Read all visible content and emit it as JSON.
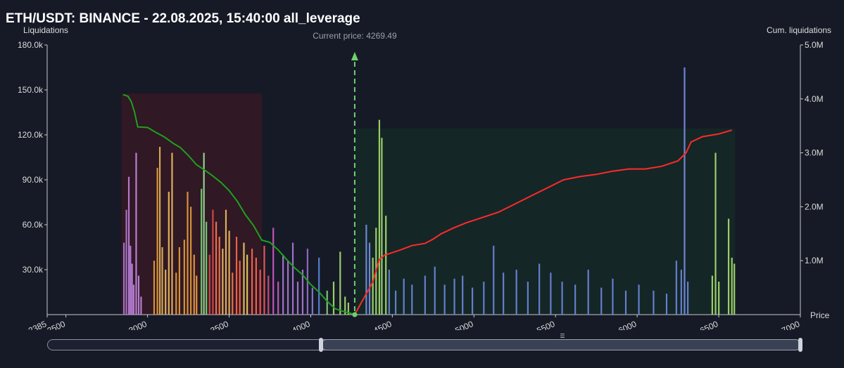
{
  "header": {
    "title": "ETH/USDT: BINANCE - 22.08.2025, 15:40:00 all_leverage",
    "left_axis_title": "Liquidations",
    "right_axis_title": "Cum. liquidations",
    "x_axis_title": "Price"
  },
  "colors": {
    "background": "#161a26",
    "green_curve": "#1fa01f",
    "red_curve": "#ff2a2a",
    "current_price_line": "#6fcf6f"
  },
  "chart_data": {
    "type": "bar",
    "xlabel": "Price",
    "ylabel": "Liquidations",
    "y2label": "Cum. liquidations",
    "xlim": [
      2385,
      7000
    ],
    "ylim": [
      0,
      180000
    ],
    "y2lim": [
      0,
      5000000
    ],
    "x_ticks": [
      {
        "value": 2385,
        "label": "2385"
      },
      {
        "value": 2500,
        "label": "2500"
      },
      {
        "value": 3000,
        "label": "3000"
      },
      {
        "value": 3500,
        "label": "3500"
      },
      {
        "value": 4000,
        "label": "4000"
      },
      {
        "value": 4500,
        "label": "4500"
      },
      {
        "value": 5000,
        "label": "5000"
      },
      {
        "value": 5500,
        "label": "5500"
      },
      {
        "value": 6000,
        "label": "6000"
      },
      {
        "value": 6500,
        "label": "6500"
      },
      {
        "value": 7000,
        "label": "7000"
      }
    ],
    "y_ticks": [
      {
        "value": 30000,
        "label": "30.0k"
      },
      {
        "value": 60000,
        "label": "60.0k"
      },
      {
        "value": 90000,
        "label": "90.0k"
      },
      {
        "value": 120000,
        "label": "120.0k"
      },
      {
        "value": 150000,
        "label": "150.0k"
      },
      {
        "value": 180000,
        "label": "180.0k"
      }
    ],
    "y2_ticks": [
      {
        "value": 1000000,
        "label": "1.0M"
      },
      {
        "value": 2000000,
        "label": "2.0M"
      },
      {
        "value": 3000000,
        "label": "3.0M"
      },
      {
        "value": 4000000,
        "label": "4.0M"
      },
      {
        "value": 5000000,
        "label": "5.0M"
      }
    ],
    "current_price": {
      "value": 4269.49,
      "label": "Current price: 4269.49"
    },
    "bars": [
      {
        "x": 2855,
        "y": 48000,
        "color": "#b07ad8"
      },
      {
        "x": 2870,
        "y": 70000,
        "color": "#b07ad8"
      },
      {
        "x": 2885,
        "y": 92000,
        "color": "#c084e0"
      },
      {
        "x": 2895,
        "y": 46000,
        "color": "#c084e0"
      },
      {
        "x": 2905,
        "y": 34000,
        "color": "#c084e0"
      },
      {
        "x": 2915,
        "y": 20000,
        "color": "#c084e0"
      },
      {
        "x": 2930,
        "y": 108000,
        "color": "#c98ae6"
      },
      {
        "x": 2945,
        "y": 26000,
        "color": "#c98ae6"
      },
      {
        "x": 2960,
        "y": 12000,
        "color": "#c98ae6"
      },
      {
        "x": 3040,
        "y": 36000,
        "color": "#e8a03c"
      },
      {
        "x": 3060,
        "y": 98000,
        "color": "#e8a03c"
      },
      {
        "x": 3075,
        "y": 112000,
        "color": "#e6b85a"
      },
      {
        "x": 3090,
        "y": 45000,
        "color": "#e6b85a"
      },
      {
        "x": 3110,
        "y": 30000,
        "color": "#f0c060"
      },
      {
        "x": 3130,
        "y": 82000,
        "color": "#f0c060"
      },
      {
        "x": 3150,
        "y": 108000,
        "color": "#f0c060"
      },
      {
        "x": 3175,
        "y": 28000,
        "color": "#e8a03c"
      },
      {
        "x": 3195,
        "y": 45000,
        "color": "#e8a03c"
      },
      {
        "x": 3225,
        "y": 50000,
        "color": "#e8a03c"
      },
      {
        "x": 3245,
        "y": 82000,
        "color": "#e8a03c"
      },
      {
        "x": 3265,
        "y": 72000,
        "color": "#e8a03c"
      },
      {
        "x": 3285,
        "y": 40000,
        "color": "#f0a040"
      },
      {
        "x": 3300,
        "y": 26000,
        "color": "#f0a040"
      },
      {
        "x": 3330,
        "y": 84000,
        "color": "#7ad87a"
      },
      {
        "x": 3345,
        "y": 108000,
        "color": "#9be39b"
      },
      {
        "x": 3360,
        "y": 62000,
        "color": "#7ad87a"
      },
      {
        "x": 3380,
        "y": 40000,
        "color": "#e04a4a"
      },
      {
        "x": 3400,
        "y": 70000,
        "color": "#e04a4a"
      },
      {
        "x": 3420,
        "y": 62000,
        "color": "#ff7a50"
      },
      {
        "x": 3440,
        "y": 52000,
        "color": "#ff7a50"
      },
      {
        "x": 3460,
        "y": 44000,
        "color": "#f0c060"
      },
      {
        "x": 3480,
        "y": 70000,
        "color": "#f0c060"
      },
      {
        "x": 3500,
        "y": 56000,
        "color": "#f0c060"
      },
      {
        "x": 3520,
        "y": 28000,
        "color": "#ff7a50"
      },
      {
        "x": 3545,
        "y": 52000,
        "color": "#ff6a4a"
      },
      {
        "x": 3565,
        "y": 36000,
        "color": "#ff6a4a"
      },
      {
        "x": 3590,
        "y": 48000,
        "color": "#e8d060"
      },
      {
        "x": 3610,
        "y": 40000,
        "color": "#e8d060"
      },
      {
        "x": 3640,
        "y": 44000,
        "color": "#ff6a4a"
      },
      {
        "x": 3665,
        "y": 38000,
        "color": "#ff6a4a"
      },
      {
        "x": 3690,
        "y": 30000,
        "color": "#ff5a5a"
      },
      {
        "x": 3715,
        "y": 46000,
        "color": "#ff5a5a"
      },
      {
        "x": 3740,
        "y": 26000,
        "color": "#e04a8a"
      },
      {
        "x": 3770,
        "y": 58000,
        "color": "#d05ac8"
      },
      {
        "x": 3800,
        "y": 22000,
        "color": "#d05ac8"
      },
      {
        "x": 3830,
        "y": 40000,
        "color": "#b07ad8"
      },
      {
        "x": 3860,
        "y": 36000,
        "color": "#b07ad8"
      },
      {
        "x": 3890,
        "y": 48000,
        "color": "#b07ad8"
      },
      {
        "x": 3920,
        "y": 22000,
        "color": "#b07ad8"
      },
      {
        "x": 3950,
        "y": 30000,
        "color": "#b07ad8"
      },
      {
        "x": 3980,
        "y": 44000,
        "color": "#9a70d0"
      },
      {
        "x": 4010,
        "y": 18000,
        "color": "#8a80d8"
      },
      {
        "x": 4050,
        "y": 38000,
        "color": "#5a8ad8"
      },
      {
        "x": 4100,
        "y": 16000,
        "color": "#8ad080"
      },
      {
        "x": 4140,
        "y": 22000,
        "color": "#a8e070"
      },
      {
        "x": 4180,
        "y": 42000,
        "color": "#a8e070"
      },
      {
        "x": 4210,
        "y": 12000,
        "color": "#a8e070"
      },
      {
        "x": 4230,
        "y": 8000,
        "color": "#a8e070"
      },
      {
        "x": 4340,
        "y": 60000,
        "color": "#7a90e8"
      },
      {
        "x": 4360,
        "y": 48000,
        "color": "#7a90e8"
      },
      {
        "x": 4380,
        "y": 38000,
        "color": "#a8e070"
      },
      {
        "x": 4400,
        "y": 58000,
        "color": "#a8e070"
      },
      {
        "x": 4420,
        "y": 130000,
        "color": "#a8e070"
      },
      {
        "x": 4435,
        "y": 118000,
        "color": "#a8e070"
      },
      {
        "x": 4460,
        "y": 66000,
        "color": "#a8e070"
      },
      {
        "x": 4480,
        "y": 30000,
        "color": "#6a8ae0"
      },
      {
        "x": 4520,
        "y": 16000,
        "color": "#6a8ae0"
      },
      {
        "x": 4570,
        "y": 24000,
        "color": "#6a8ae0"
      },
      {
        "x": 4620,
        "y": 20000,
        "color": "#6a8ae0"
      },
      {
        "x": 4700,
        "y": 26000,
        "color": "#6a8ae0"
      },
      {
        "x": 4760,
        "y": 32000,
        "color": "#6a8ae0"
      },
      {
        "x": 4820,
        "y": 20000,
        "color": "#6a8ae0"
      },
      {
        "x": 4880,
        "y": 24000,
        "color": "#6a8ae0"
      },
      {
        "x": 4930,
        "y": 26000,
        "color": "#6a8ae0"
      },
      {
        "x": 4990,
        "y": 18000,
        "color": "#6a8ae0"
      },
      {
        "x": 5060,
        "y": 22000,
        "color": "#6a8ae0"
      },
      {
        "x": 5120,
        "y": 46000,
        "color": "#6a8ae0"
      },
      {
        "x": 5180,
        "y": 28000,
        "color": "#6a8ae0"
      },
      {
        "x": 5260,
        "y": 30000,
        "color": "#6a8ae0"
      },
      {
        "x": 5330,
        "y": 22000,
        "color": "#6a8ae0"
      },
      {
        "x": 5400,
        "y": 34000,
        "color": "#6a8ae0"
      },
      {
        "x": 5470,
        "y": 28000,
        "color": "#6a8ae0"
      },
      {
        "x": 5540,
        "y": 22000,
        "color": "#6a8ae0"
      },
      {
        "x": 5620,
        "y": 20000,
        "color": "#6a8ae0"
      },
      {
        "x": 5700,
        "y": 30000,
        "color": "#6a8ae0"
      },
      {
        "x": 5780,
        "y": 18000,
        "color": "#6a8ae0"
      },
      {
        "x": 5850,
        "y": 24000,
        "color": "#6a8ae0"
      },
      {
        "x": 5930,
        "y": 16000,
        "color": "#6a8ae0"
      },
      {
        "x": 6010,
        "y": 20000,
        "color": "#6a8ae0"
      },
      {
        "x": 6100,
        "y": 16000,
        "color": "#6a8ae0"
      },
      {
        "x": 6180,
        "y": 14000,
        "color": "#6a8ae0"
      },
      {
        "x": 6240,
        "y": 36000,
        "color": "#6a8ae0"
      },
      {
        "x": 6270,
        "y": 30000,
        "color": "#6a8ae0"
      },
      {
        "x": 6290,
        "y": 165000,
        "color": "#7a90e8"
      },
      {
        "x": 6310,
        "y": 22000,
        "color": "#6a8ae0"
      },
      {
        "x": 6460,
        "y": 26000,
        "color": "#a8e070"
      },
      {
        "x": 6480,
        "y": 108000,
        "color": "#a8e070"
      },
      {
        "x": 6500,
        "y": 22000,
        "color": "#a8e070"
      },
      {
        "x": 6560,
        "y": 64000,
        "color": "#a8e070"
      },
      {
        "x": 6580,
        "y": 38000,
        "color": "#a8e070"
      },
      {
        "x": 6595,
        "y": 34000,
        "color": "#a8e070"
      }
    ],
    "series": [
      {
        "name": "",
        "color": "#1fa01f",
        "axis": "y2",
        "points": [
          [
            2850,
            4080000
          ],
          [
            2880,
            4050000
          ],
          [
            2900,
            3950000
          ],
          [
            2920,
            3760000
          ],
          [
            2940,
            3480000
          ],
          [
            3000,
            3470000
          ],
          [
            3050,
            3380000
          ],
          [
            3100,
            3300000
          ],
          [
            3160,
            3170000
          ],
          [
            3200,
            3100000
          ],
          [
            3250,
            2950000
          ],
          [
            3300,
            2780000
          ],
          [
            3350,
            2680000
          ],
          [
            3400,
            2570000
          ],
          [
            3450,
            2450000
          ],
          [
            3500,
            2300000
          ],
          [
            3550,
            2100000
          ],
          [
            3600,
            1850000
          ],
          [
            3650,
            1650000
          ],
          [
            3700,
            1380000
          ],
          [
            3750,
            1340000
          ],
          [
            3800,
            1200000
          ],
          [
            3850,
            1030000
          ],
          [
            3900,
            870000
          ],
          [
            3950,
            740000
          ],
          [
            4000,
            560000
          ],
          [
            4050,
            420000
          ],
          [
            4100,
            250000
          ],
          [
            4150,
            110000
          ],
          [
            4200,
            60000
          ],
          [
            4250,
            20000
          ],
          [
            4269,
            0
          ]
        ]
      },
      {
        "name": "",
        "color": "#ff2a2a",
        "axis": "y2",
        "points": [
          [
            4269,
            0
          ],
          [
            4380,
            600000
          ],
          [
            4420,
            1020000
          ],
          [
            4450,
            1100000
          ],
          [
            4500,
            1150000
          ],
          [
            4550,
            1200000
          ],
          [
            4620,
            1280000
          ],
          [
            4700,
            1320000
          ],
          [
            4750,
            1400000
          ],
          [
            4800,
            1500000
          ],
          [
            4870,
            1600000
          ],
          [
            4950,
            1700000
          ],
          [
            5050,
            1800000
          ],
          [
            5150,
            1900000
          ],
          [
            5250,
            2050000
          ],
          [
            5350,
            2200000
          ],
          [
            5450,
            2350000
          ],
          [
            5550,
            2500000
          ],
          [
            5650,
            2560000
          ],
          [
            5750,
            2600000
          ],
          [
            5850,
            2660000
          ],
          [
            5950,
            2700000
          ],
          [
            6050,
            2700000
          ],
          [
            6150,
            2750000
          ],
          [
            6250,
            2850000
          ],
          [
            6300,
            3000000
          ],
          [
            6330,
            3200000
          ],
          [
            6400,
            3300000
          ],
          [
            6500,
            3350000
          ],
          [
            6580,
            3420000
          ]
        ]
      }
    ]
  }
}
